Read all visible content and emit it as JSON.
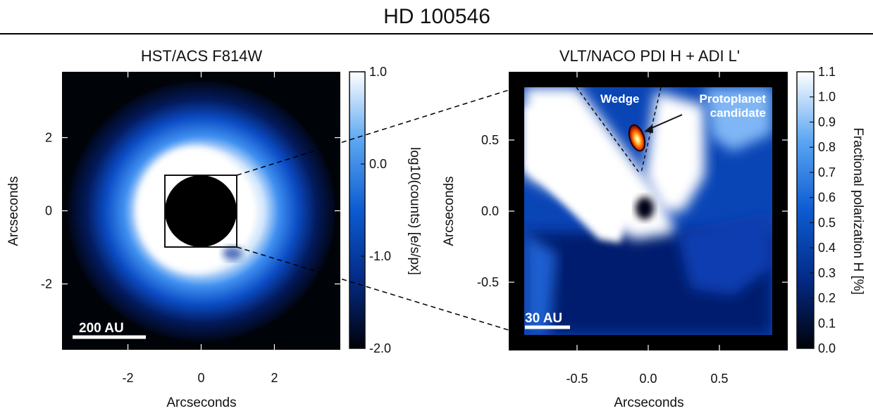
{
  "figure_title": "HD 100546",
  "colors": {
    "cmap_dark": "#000510",
    "cmap_mid": "#0a5ed6",
    "cmap_light": "#ffffff",
    "protoplanet": "#ff6a00"
  },
  "chart_data": [
    {
      "type": "heatmap",
      "title": "HST/ACS F814W",
      "xlabel": "Arcseconds",
      "ylabel": "Arcseconds",
      "xlim": [
        -3.8,
        3.8
      ],
      "ylim": [
        -3.8,
        3.8
      ],
      "xticks": [
        -2,
        0,
        2
      ],
      "yticks": [
        -2,
        0,
        2
      ],
      "xtick_labels": [
        "-2",
        "0",
        "2"
      ],
      "ytick_labels": [
        "-2",
        "0",
        "2"
      ],
      "colorbar": {
        "label": "log10(counts) [e/s/px]",
        "range": [
          -2.0,
          1.0
        ],
        "ticks": [
          1.0,
          0.0,
          -1.0,
          -2.0
        ],
        "tick_labels": [
          "1.0",
          "0.0",
          "-1.0",
          "-2.0"
        ]
      },
      "scale_bar": "200 AU",
      "occulter_radius": 1.0,
      "zoom_box": [
        -1,
        1,
        -1,
        1
      ]
    },
    {
      "type": "heatmap",
      "title": "VLT/NACO PDI H + ADI L'",
      "xlabel": "Arcseconds",
      "ylabel": "Arcseconds",
      "xlim": [
        -0.98,
        0.98
      ],
      "ylim": [
        -0.98,
        0.98
      ],
      "xticks": [
        -0.5,
        0.0,
        0.5
      ],
      "yticks": [
        0.5,
        0.0,
        -0.5
      ],
      "xtick_labels": [
        "-0.5",
        "0.0",
        "0.5"
      ],
      "ytick_labels": [
        "0.5",
        "0.0",
        "-0.5"
      ],
      "colorbar": {
        "label": "Fractional polarization H [%]",
        "range": [
          0.0,
          1.1
        ],
        "ticks": [
          1.1,
          1.0,
          0.9,
          0.8,
          0.7,
          0.6,
          0.5,
          0.4,
          0.3,
          0.2,
          0.1,
          0.0
        ],
        "tick_labels": [
          "1.1",
          "1.0",
          "0.9",
          "0.8",
          "0.7",
          "0.6",
          "0.5",
          "0.4",
          "0.3",
          "0.2",
          "0.1",
          "0.0"
        ]
      },
      "scale_bar": "30 AU",
      "annotations": [
        "Wedge",
        "Protoplanet",
        "candidate"
      ]
    }
  ]
}
